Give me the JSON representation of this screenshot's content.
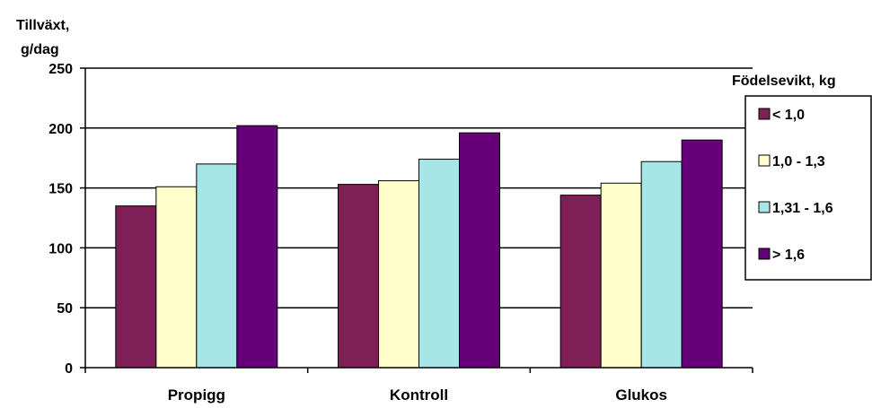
{
  "chart_data": {
    "type": "bar",
    "ylabel_line1": "Tillväxt,",
    "ylabel_line2": "g/dag",
    "categories": [
      "Propigg",
      "Kontroll",
      "Glukos"
    ],
    "ylim": [
      0,
      250
    ],
    "yticks": [
      0,
      50,
      100,
      150,
      200,
      250
    ],
    "grid": true,
    "legend_title": "Födelsevikt, kg",
    "legend_position": "right",
    "series": [
      {
        "name": "< 1,0",
        "color": "#7f1f57",
        "values": [
          135,
          153,
          144
        ]
      },
      {
        "name": "1,0 - 1,3",
        "color": "#ffffcc",
        "values": [
          151,
          156,
          154
        ]
      },
      {
        "name": "1,31 - 1,6",
        "color": "#a6e6e6",
        "values": [
          170,
          174,
          172
        ]
      },
      {
        "name": "> 1,6",
        "color": "#650078",
        "values": [
          202,
          196,
          190
        ]
      }
    ]
  }
}
